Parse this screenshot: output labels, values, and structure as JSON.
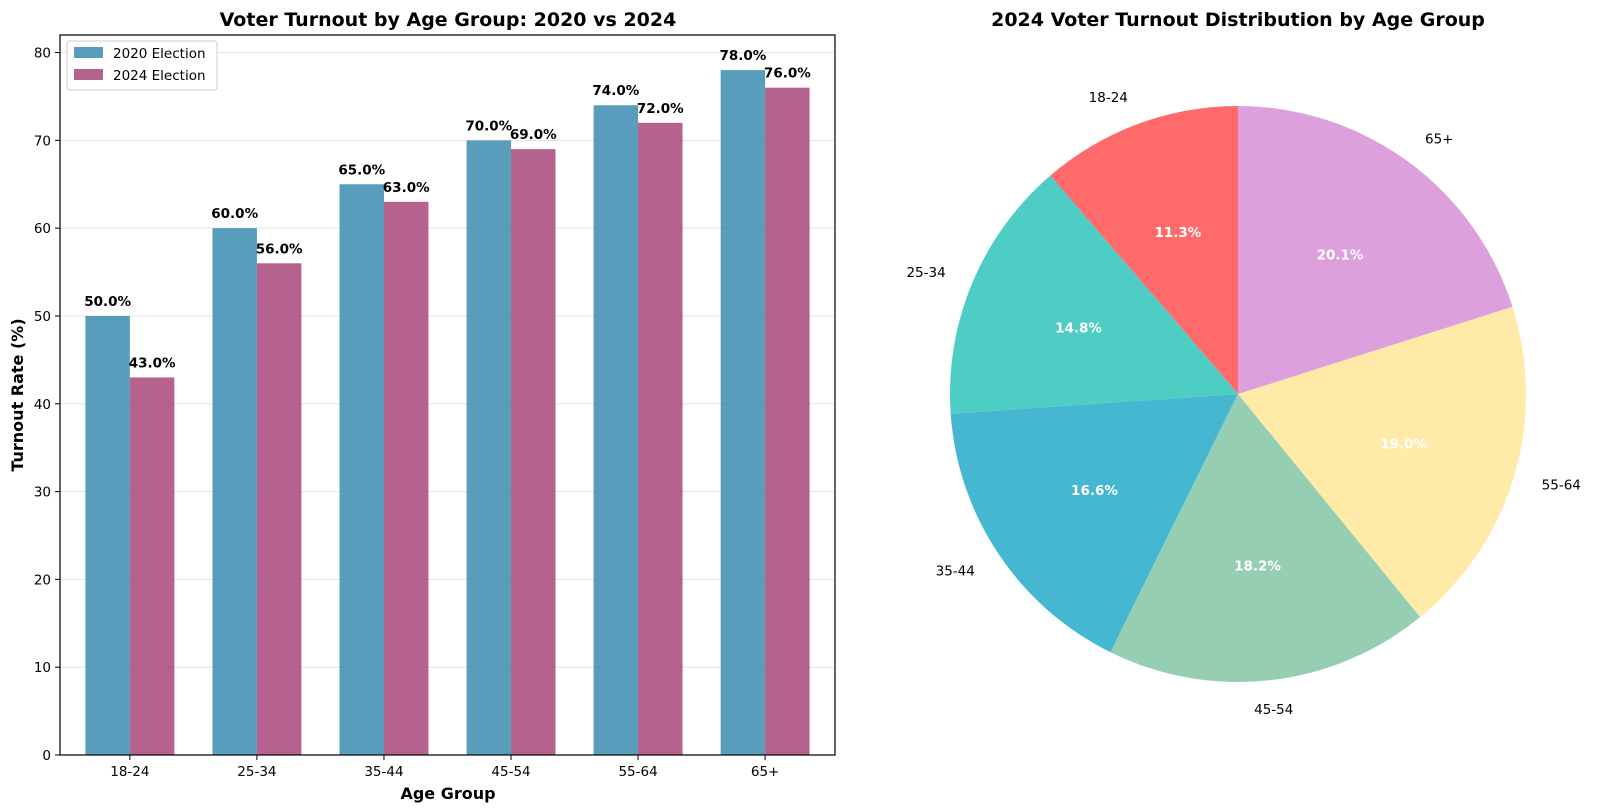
{
  "chart_data": [
    {
      "type": "bar",
      "title": "Voter Turnout by Age Group: 2020 vs 2024",
      "xlabel": "Age Group",
      "ylabel": "Turnout Rate (%)",
      "categories": [
        "18-24",
        "25-34",
        "35-44",
        "45-54",
        "55-64",
        "65+"
      ],
      "ylim": [
        0,
        82
      ],
      "yticks": [
        0,
        10,
        20,
        30,
        40,
        50,
        60,
        70,
        80
      ],
      "grid": "y",
      "legend_position": "top-left",
      "series": [
        {
          "name": "2020 Election",
          "color": "#2E86AB",
          "values": [
            50.0,
            60.0,
            65.0,
            70.0,
            74.0,
            78.0
          ],
          "labels": [
            "50.0%",
            "60.0%",
            "65.0%",
            "70.0%",
            "74.0%",
            "78.0%"
          ]
        },
        {
          "name": "2024 Election",
          "color": "#A23B72",
          "values": [
            43.0,
            56.0,
            63.0,
            69.0,
            72.0,
            76.0
          ],
          "labels": [
            "43.0%",
            "56.0%",
            "63.0%",
            "69.0%",
            "72.0%",
            "76.0%"
          ]
        }
      ]
    },
    {
      "type": "pie",
      "title": "2024 Voter Turnout Distribution by Age Group",
      "start": "top",
      "direction": "counter-clockwise",
      "slices": [
        {
          "label": "18-24",
          "value": 11.3,
          "pct": "11.3%",
          "color": "#FF6B6B"
        },
        {
          "label": "25-34",
          "value": 14.8,
          "pct": "14.8%",
          "color": "#4ECDC4"
        },
        {
          "label": "35-44",
          "value": 16.6,
          "pct": "16.6%",
          "color": "#45B7D1"
        },
        {
          "label": "45-54",
          "value": 18.2,
          "pct": "18.2%",
          "color": "#96CEB4"
        },
        {
          "label": "55-64",
          "value": 19.0,
          "pct": "19.0%",
          "color": "#FFEAA7"
        },
        {
          "label": "65+",
          "value": 20.1,
          "pct": "20.1%",
          "color": "#DDA0DD"
        }
      ]
    }
  ]
}
